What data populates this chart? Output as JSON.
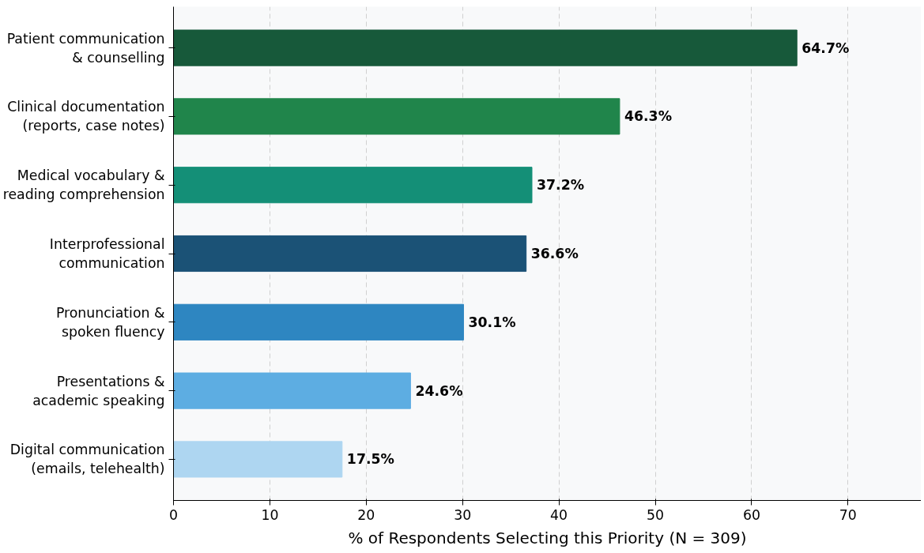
{
  "chart_data": {
    "type": "bar",
    "orientation": "horizontal",
    "xlabel": "% of Respondents Selecting this Priority (N = 309)",
    "categories": [
      "Patient communication\n& counselling",
      "Clinical documentation\n(reports, case notes)",
      "Medical vocabulary &\nreading comprehension",
      "Interprofessional\ncommunication",
      "Pronunciation &\nspoken fluency",
      "Presentations &\nacademic speaking",
      "Digital communication\n(emails, telehealth)"
    ],
    "values": [
      64.7,
      46.3,
      37.2,
      36.6,
      30.1,
      24.6,
      17.5
    ],
    "colors": [
      "#17593a",
      "#20854b",
      "#148f77",
      "#1b5276",
      "#2e86c1",
      "#5dade2",
      "#aed6f1"
    ],
    "value_labels": [
      "64.7%",
      "46.3%",
      "37.2%",
      "36.6%",
      "30.1%",
      "24.6%",
      "17.5%"
    ],
    "xlim": [
      0,
      77.6
    ],
    "xticks": [
      0,
      10,
      20,
      30,
      40,
      50,
      60,
      70
    ],
    "grid": "x"
  }
}
